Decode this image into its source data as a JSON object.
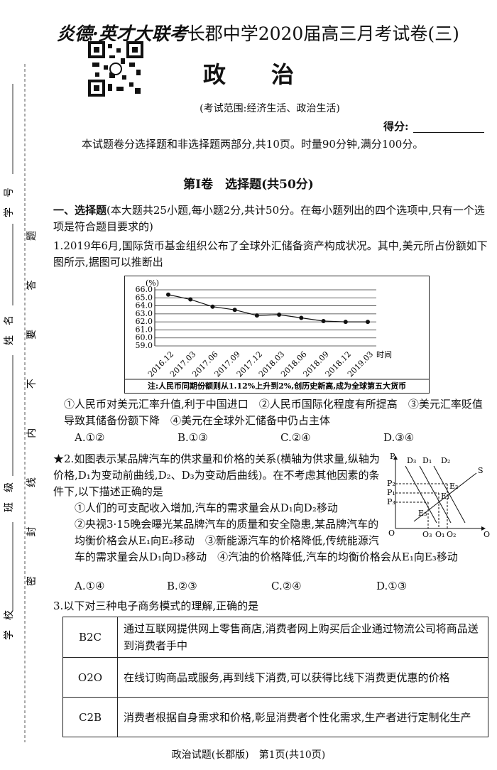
{
  "header": {
    "brand": "炎德·英才大联考",
    "title": "长郡中学2020届高三月考试卷(三)",
    "subject": "政　　治",
    "scope": "(考试范围:经济生活、政治生活)",
    "score_label": "得分:",
    "intro": "本试题卷分选择题和非选择题两部分,共10页。时量90分钟,满分100分。"
  },
  "margin": {
    "fields": [
      "学　号",
      "姓　名",
      "班　级",
      "学　校"
    ],
    "notice": "密封线内不要答题"
  },
  "part": {
    "title": "第Ⅰ卷　选择题(共50分)"
  },
  "section": {
    "heading": "一、选择题",
    "instruction": "(本大题共25小题,每小题2分,共计50分。在每小题列出的四个选项中,只有一个选项是符合题目要求的)"
  },
  "questions": [
    {
      "number": "1.",
      "stem": "2019年6月,国际货币基金组织公布了全球外汇储备资产构成状况。其中,美元所占份额如下图所示,据图可以推断出",
      "chart": {
        "type": "line",
        "unit": "(%)",
        "x_label": "时间",
        "categories": [
          "2016.12",
          "2017.03",
          "2017.06",
          "2017.09",
          "2017.12",
          "2018.03",
          "2018.06",
          "2018.09",
          "2018.12",
          "2019.03"
        ],
        "values": [
          65.4,
          64.8,
          63.9,
          63.5,
          62.8,
          62.9,
          62.5,
          62.1,
          62.0,
          62.0
        ],
        "ylim": [
          59,
          66
        ],
        "yticks": [
          {
            "value": 59,
            "label": "59.0"
          },
          {
            "value": 60,
            "label": "60.0"
          },
          {
            "value": 61,
            "label": "61.0"
          },
          {
            "value": 62,
            "label": "62.0"
          },
          {
            "value": 63,
            "label": "63.0"
          },
          {
            "value": 64,
            "label": "64.0"
          },
          {
            "value": 65,
            "label": "65.0"
          },
          {
            "value": 66,
            "label": "66.0"
          }
        ],
        "grid": true,
        "color": "#111111",
        "note": "注:人民币同期份额则从1.12%上升到2%,创历史新高,成为全球第五大货币"
      },
      "statements": [
        "①人民币对美元汇率升值,利于中国进口",
        "②人民币国际化程度有所提高",
        "③美元汇率贬值导致其储备份额下降",
        "④美元在全球外汇储备中仍占主体"
      ],
      "options": [
        "A.①②",
        "B.①③",
        "C.②④",
        "D.③④"
      ]
    },
    {
      "number": "★2.",
      "stem": "如图表示某品牌汽车的供求量和价格的关系(横轴为供求量,纵轴为价格,D₁为变动前曲线,D₂、D₃为变动后曲线)。在不考虑其他因素的条件下,以下描述正确的是",
      "statements": [
        "①人们的可支配收入增加,汽车的需求量会从D₁向D₂移动",
        "②央视3·15晚会曝光某品牌汽车的质量和安全隐患,某品牌汽车的均衡价格会从E₁向E₂移动",
        "③新能源汽车的价格降低,传统能源汽车的需求量会从D₁向D₃移动",
        "④汽油的价格降低,汽车的均衡价格会从E₁向E₃移动"
      ],
      "diagram": {
        "y_axis": "P",
        "x_axis": "Q",
        "origin": "O",
        "supply": "S",
        "curves": [
          "D₃",
          "D₁",
          "D₂"
        ],
        "prices": [
          "P₂",
          "P₁",
          "P₃"
        ],
        "points": [
          "E₂",
          "E₁",
          "E₃"
        ],
        "quantities": [
          "Q₃",
          "Q₁",
          "Q₂"
        ]
      },
      "options": [
        "A.①④",
        "B.②③",
        "C.②④",
        "D.①③"
      ]
    },
    {
      "number": "3.",
      "stem": "以下对三种电子商务模式的理解,正确的是",
      "table": {
        "rows": [
          [
            "B2C",
            "通过互联网提供网上零售商店,消费者网上购买后企业通过物流公司将商品送到消费者手中"
          ],
          [
            "O2O",
            "在线订购商品或服务,再到线下消费,可以获得比线下消费更优惠的价格"
          ],
          [
            "C2B",
            "消费者根据自身需求和价格,彰显消费者个性化需求,生产者进行定制化生产"
          ]
        ]
      }
    }
  ],
  "footer": "政治试题(长郡版)　第1页(共10页)"
}
